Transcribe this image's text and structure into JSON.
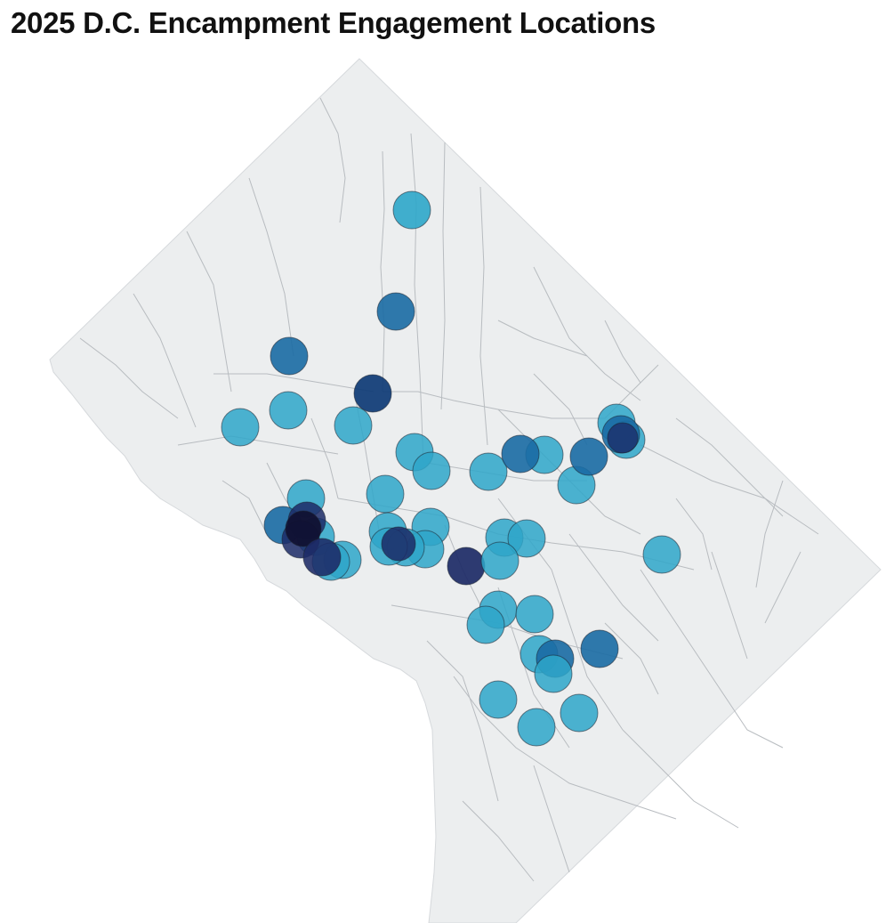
{
  "title": "2025 D.C. Encampment Engagement Locations",
  "colors": {
    "land": "#eceeef",
    "boundary": "#b8bcc0",
    "water": "#ffffff",
    "marker_light": "#2ea6c9",
    "marker_mid": "#1a6aa3",
    "marker_dark": "#0d3a75",
    "marker_darker": "#1c2a66",
    "marker_darkest": "#101030"
  }
}
